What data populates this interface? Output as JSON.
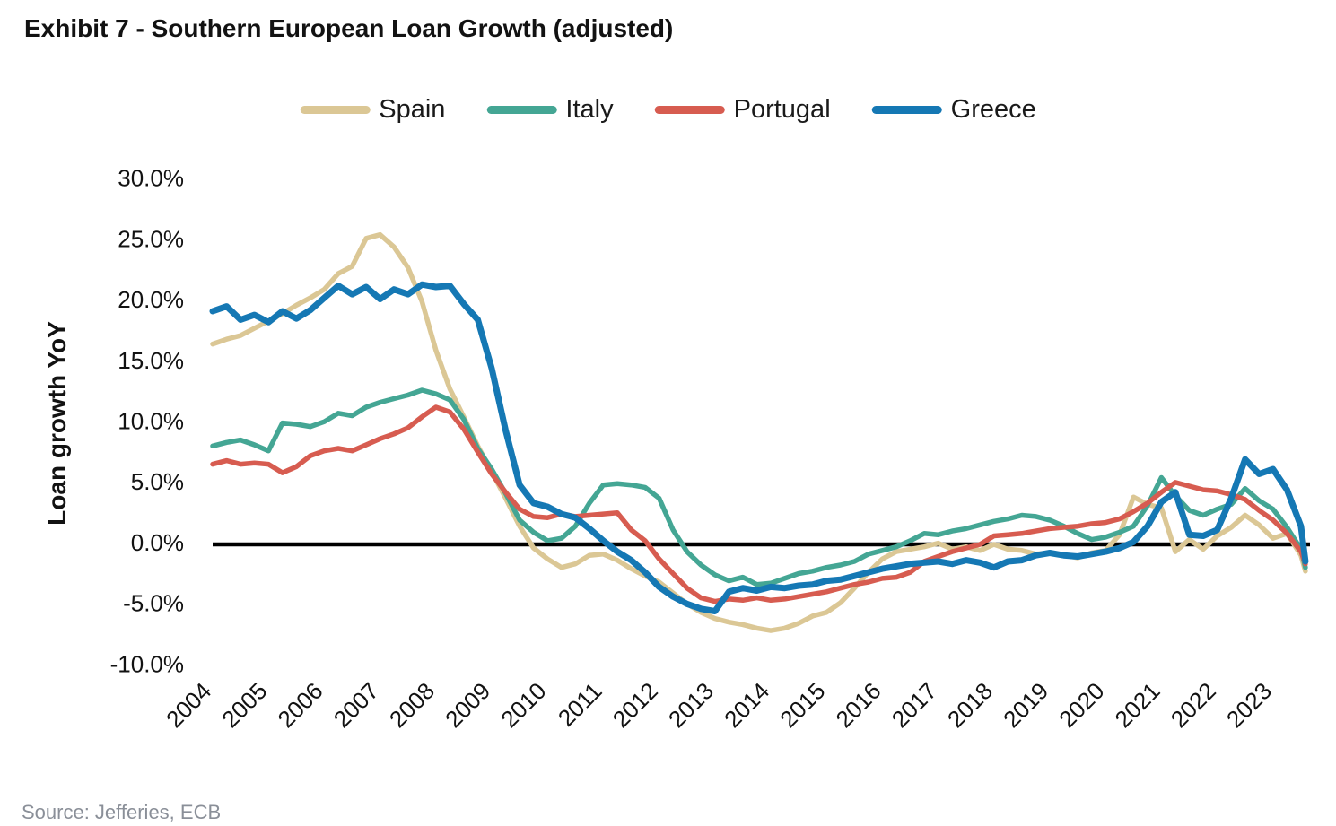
{
  "page": {
    "source_note": "Source: Jefferies, ECB"
  },
  "chart_data": {
    "type": "line",
    "title": "Exhibit 7 - Southern European Loan Growth (adjusted)",
    "xlabel": "",
    "ylabel": "Loan growth YoY",
    "ylim": [
      -10,
      30
    ],
    "xlim": [
      2004,
      2023.67
    ],
    "grid": false,
    "legend_position": "top",
    "zero_line": true,
    "y_tick_values": [
      30,
      25,
      20,
      15,
      10,
      5,
      0,
      -5,
      -10
    ],
    "y_tick_labels": [
      "30.0%",
      "25.0%",
      "20.0%",
      "15.0%",
      "10.0%",
      "5.0%",
      "0.0%",
      "-5.0%",
      "-10.0%"
    ],
    "x_tick_values": [
      2004,
      2005,
      2006,
      2007,
      2008,
      2009,
      2010,
      2011,
      2012,
      2013,
      2014,
      2015,
      2016,
      2017,
      2018,
      2019,
      2020,
      2021,
      2022,
      2023
    ],
    "x_tick_labels": [
      "2004",
      "2005",
      "2006",
      "2007",
      "2008",
      "2009",
      "2010",
      "2011",
      "2012",
      "2013",
      "2014",
      "2015",
      "2016",
      "2017",
      "2018",
      "2019",
      "2020",
      "2021",
      "2022",
      "2023"
    ],
    "x": [
      2004.0,
      2004.25,
      2004.5,
      2004.75,
      2005.0,
      2005.25,
      2005.5,
      2005.75,
      2006.0,
      2006.25,
      2006.5,
      2006.75,
      2007.0,
      2007.25,
      2007.5,
      2007.75,
      2008.0,
      2008.25,
      2008.5,
      2008.75,
      2009.0,
      2009.25,
      2009.5,
      2009.75,
      2010.0,
      2010.25,
      2010.5,
      2010.75,
      2011.0,
      2011.25,
      2011.5,
      2011.75,
      2012.0,
      2012.25,
      2012.5,
      2012.75,
      2013.0,
      2013.25,
      2013.5,
      2013.75,
      2014.0,
      2014.25,
      2014.5,
      2014.75,
      2015.0,
      2015.25,
      2015.5,
      2015.75,
      2016.0,
      2016.25,
      2016.5,
      2016.75,
      2017.0,
      2017.25,
      2017.5,
      2017.75,
      2018.0,
      2018.25,
      2018.5,
      2018.75,
      2019.0,
      2019.25,
      2019.5,
      2019.75,
      2020.0,
      2020.25,
      2020.5,
      2020.75,
      2021.0,
      2021.25,
      2021.5,
      2021.75,
      2022.0,
      2022.25,
      2022.5,
      2022.75,
      2023.0,
      2023.25,
      2023.5,
      2023.58
    ],
    "series": [
      {
        "name": "Spain",
        "color": "#DBC795",
        "values": [
          16.5,
          16.9,
          17.2,
          17.8,
          18.4,
          19.0,
          19.7,
          20.3,
          21.0,
          22.3,
          22.9,
          25.2,
          25.5,
          24.5,
          22.8,
          20.0,
          16.0,
          12.8,
          10.5,
          8.1,
          6.0,
          3.8,
          1.5,
          -0.3,
          -1.2,
          -1.9,
          -1.6,
          -0.9,
          -0.8,
          -1.3,
          -2.0,
          -2.6,
          -3.1,
          -4.0,
          -4.9,
          -5.6,
          -6.1,
          -6.4,
          -6.6,
          -6.9,
          -7.1,
          -6.9,
          -6.5,
          -5.9,
          -5.6,
          -4.8,
          -3.6,
          -2.3,
          -1.2,
          -0.6,
          -0.4,
          -0.2,
          0.1,
          -0.4,
          -0.2,
          -0.5,
          0.0,
          -0.4,
          -0.5,
          -0.8,
          -0.7,
          -0.9,
          -1.1,
          -0.7,
          -0.5,
          0.8,
          3.9,
          3.3,
          3.0,
          -0.6,
          0.4,
          -0.4,
          0.7,
          1.4,
          2.4,
          1.6,
          0.5,
          0.9,
          -0.9,
          -2.2
        ]
      },
      {
        "name": "Italy",
        "color": "#44A694",
        "values": [
          8.1,
          8.4,
          8.6,
          8.2,
          7.7,
          10.0,
          9.9,
          9.7,
          10.1,
          10.8,
          10.6,
          11.3,
          11.7,
          12.0,
          12.3,
          12.7,
          12.4,
          11.9,
          10.3,
          7.9,
          6.2,
          4.2,
          2.0,
          1.0,
          0.3,
          0.5,
          1.5,
          3.4,
          4.9,
          5.0,
          4.9,
          4.7,
          3.8,
          1.2,
          -0.6,
          -1.7,
          -2.5,
          -3.0,
          -2.7,
          -3.3,
          -3.2,
          -2.8,
          -2.4,
          -2.2,
          -1.9,
          -1.7,
          -1.4,
          -0.8,
          -0.5,
          -0.2,
          0.3,
          0.9,
          0.8,
          1.1,
          1.3,
          1.6,
          1.9,
          2.1,
          2.4,
          2.3,
          2.0,
          1.5,
          0.9,
          0.4,
          0.6,
          1.0,
          1.5,
          3.2,
          5.5,
          4.0,
          2.8,
          2.4,
          2.9,
          3.3,
          4.6,
          3.6,
          2.9,
          1.4,
          -0.4,
          -1.9
        ]
      },
      {
        "name": "Portugal",
        "color": "#D75C50",
        "values": [
          6.6,
          6.9,
          6.6,
          6.7,
          6.6,
          5.9,
          6.4,
          7.3,
          7.7,
          7.9,
          7.7,
          8.2,
          8.7,
          9.1,
          9.6,
          10.5,
          11.3,
          10.9,
          9.5,
          7.6,
          5.8,
          4.3,
          2.9,
          2.3,
          2.2,
          2.5,
          2.3,
          2.4,
          2.5,
          2.6,
          1.2,
          0.3,
          -1.2,
          -2.4,
          -3.6,
          -4.4,
          -4.7,
          -4.5,
          -4.6,
          -4.4,
          -4.6,
          -4.5,
          -4.3,
          -4.1,
          -3.9,
          -3.6,
          -3.3,
          -3.1,
          -2.8,
          -2.7,
          -2.3,
          -1.4,
          -1.0,
          -0.6,
          -0.3,
          0.0,
          0.7,
          0.8,
          0.9,
          1.1,
          1.3,
          1.4,
          1.5,
          1.7,
          1.8,
          2.1,
          2.7,
          3.4,
          4.3,
          5.1,
          4.8,
          4.5,
          4.4,
          4.1,
          3.7,
          2.8,
          2.0,
          0.9,
          -0.6,
          -1.6
        ]
      },
      {
        "name": "Greece",
        "color": "#1578B4",
        "values": [
          19.2,
          19.6,
          18.5,
          18.9,
          18.3,
          19.2,
          18.6,
          19.3,
          20.3,
          21.3,
          20.6,
          21.2,
          20.2,
          21.0,
          20.6,
          21.4,
          21.2,
          21.3,
          19.8,
          18.5,
          14.5,
          9.4,
          4.9,
          3.4,
          3.1,
          2.5,
          2.2,
          1.3,
          0.3,
          -0.6,
          -1.3,
          -2.3,
          -3.5,
          -4.3,
          -4.9,
          -5.3,
          -5.5,
          -3.9,
          -3.6,
          -3.8,
          -3.5,
          -3.6,
          -3.4,
          -3.3,
          -3.0,
          -2.9,
          -2.6,
          -2.3,
          -2.0,
          -1.8,
          -1.6,
          -1.5,
          -1.4,
          -1.6,
          -1.3,
          -1.5,
          -1.9,
          -1.4,
          -1.3,
          -0.9,
          -0.7,
          -0.9,
          -1.0,
          -0.8,
          -0.6,
          -0.3,
          0.2,
          1.5,
          3.5,
          4.3,
          0.8,
          0.7,
          1.2,
          3.8,
          7.0,
          5.8,
          6.2,
          4.5,
          1.5,
          -1.4
        ]
      }
    ]
  }
}
